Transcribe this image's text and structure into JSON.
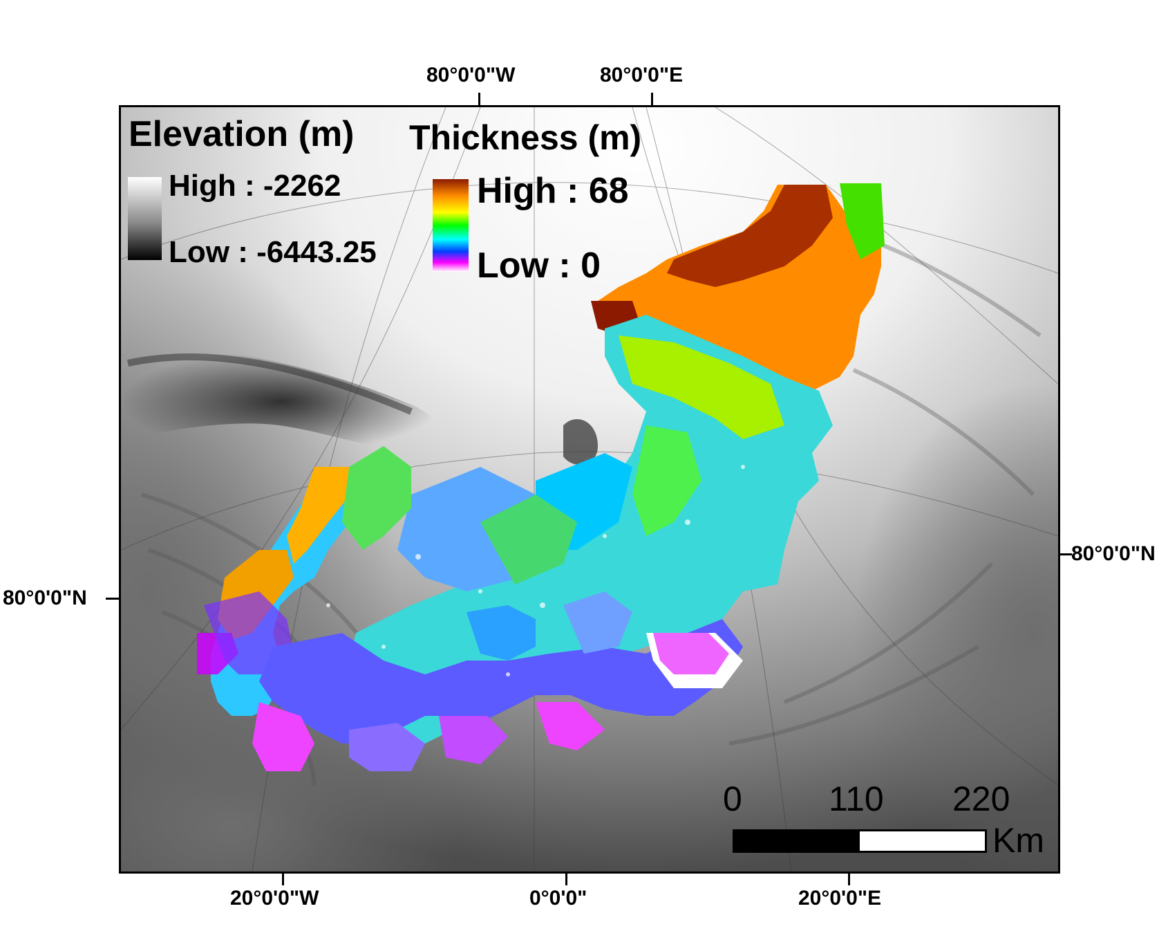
{
  "graticule_labels": {
    "top_left": "80°0'0\"W",
    "top_right": "80°0'0\"E",
    "right": "80°0'0\"N",
    "left": "80°0'0\"N",
    "bottom_left": "20°0'0\"W",
    "bottom_center": "0°0'0\"",
    "bottom_right": "20°0'0\"E"
  },
  "elevation_legend": {
    "title": "Elevation (m)",
    "high": "High : -2262",
    "low": "Low : -6443.25",
    "colors": [
      "#ffffff",
      "#000000"
    ]
  },
  "thickness_legend": {
    "title": "Thickness (m)",
    "high": "High : 68",
    "low": "Low : 0",
    "colors": [
      "#8b1a00",
      "#ff8c00",
      "#ffff00",
      "#00ff00",
      "#00ffff",
      "#0040ff",
      "#ff00ff",
      "#ffffff"
    ]
  },
  "scale_bar": {
    "labels": [
      "0",
      "110",
      "220"
    ],
    "unit": "Km"
  }
}
